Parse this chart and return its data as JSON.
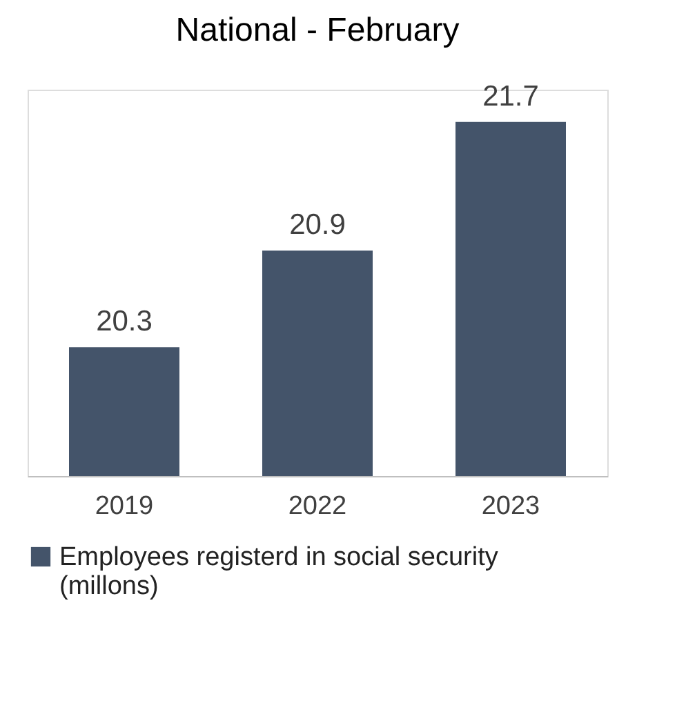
{
  "chart_data": {
    "type": "bar",
    "title": "National - February",
    "categories": [
      "2019",
      "2022",
      "2023"
    ],
    "series": [
      {
        "name": "Employees registerd in social security (millons)",
        "color": "#44546a",
        "values": [
          20.3,
          20.9,
          21.7
        ]
      }
    ],
    "ylim": [
      19.5,
      21.9
    ],
    "data_labels": true,
    "legend": "bottom",
    "grid": false
  }
}
